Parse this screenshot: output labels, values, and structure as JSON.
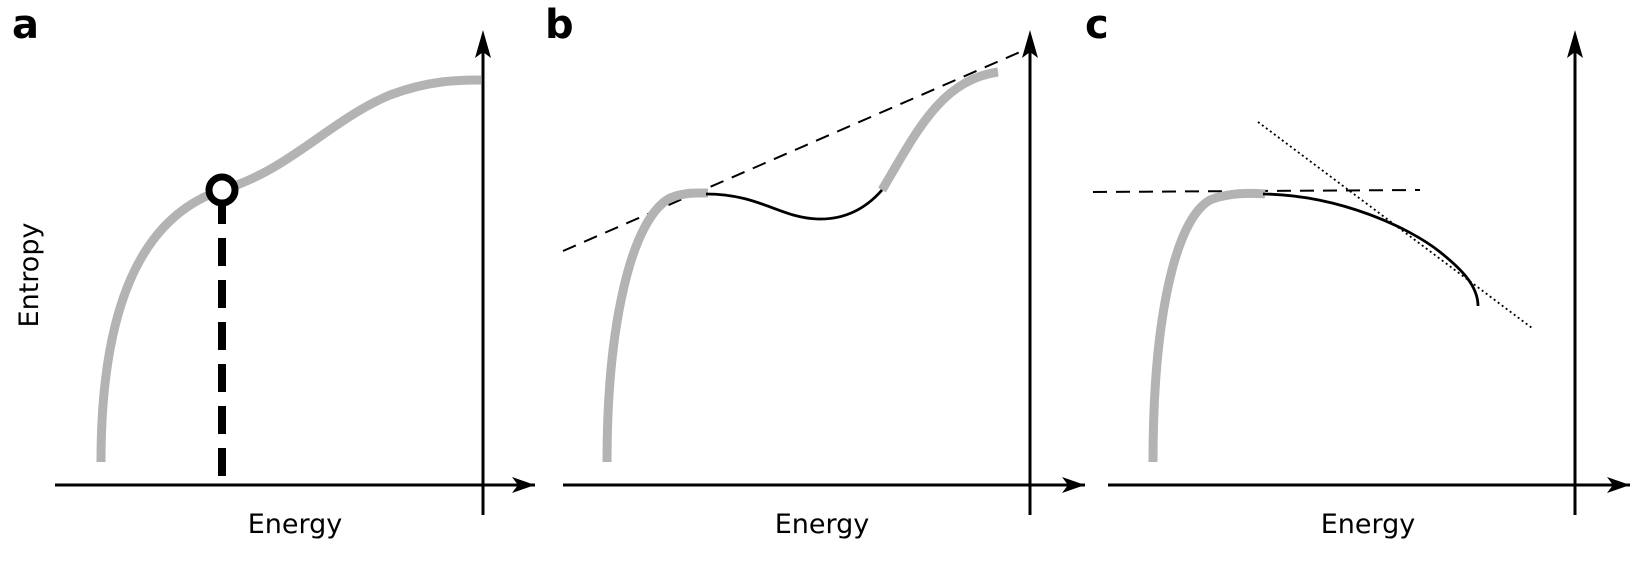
{
  "panels": {
    "a": {
      "label": "a",
      "x_axis_label": "Energy",
      "y_axis_label": "Entropy"
    },
    "b": {
      "label": "b",
      "x_axis_label": "Energy"
    },
    "c": {
      "label": "c",
      "x_axis_label": "Energy"
    }
  },
  "colors": {
    "stable_curve": "#b3b3b3",
    "unstable_curve": "#000000",
    "axes": "#000000"
  }
}
